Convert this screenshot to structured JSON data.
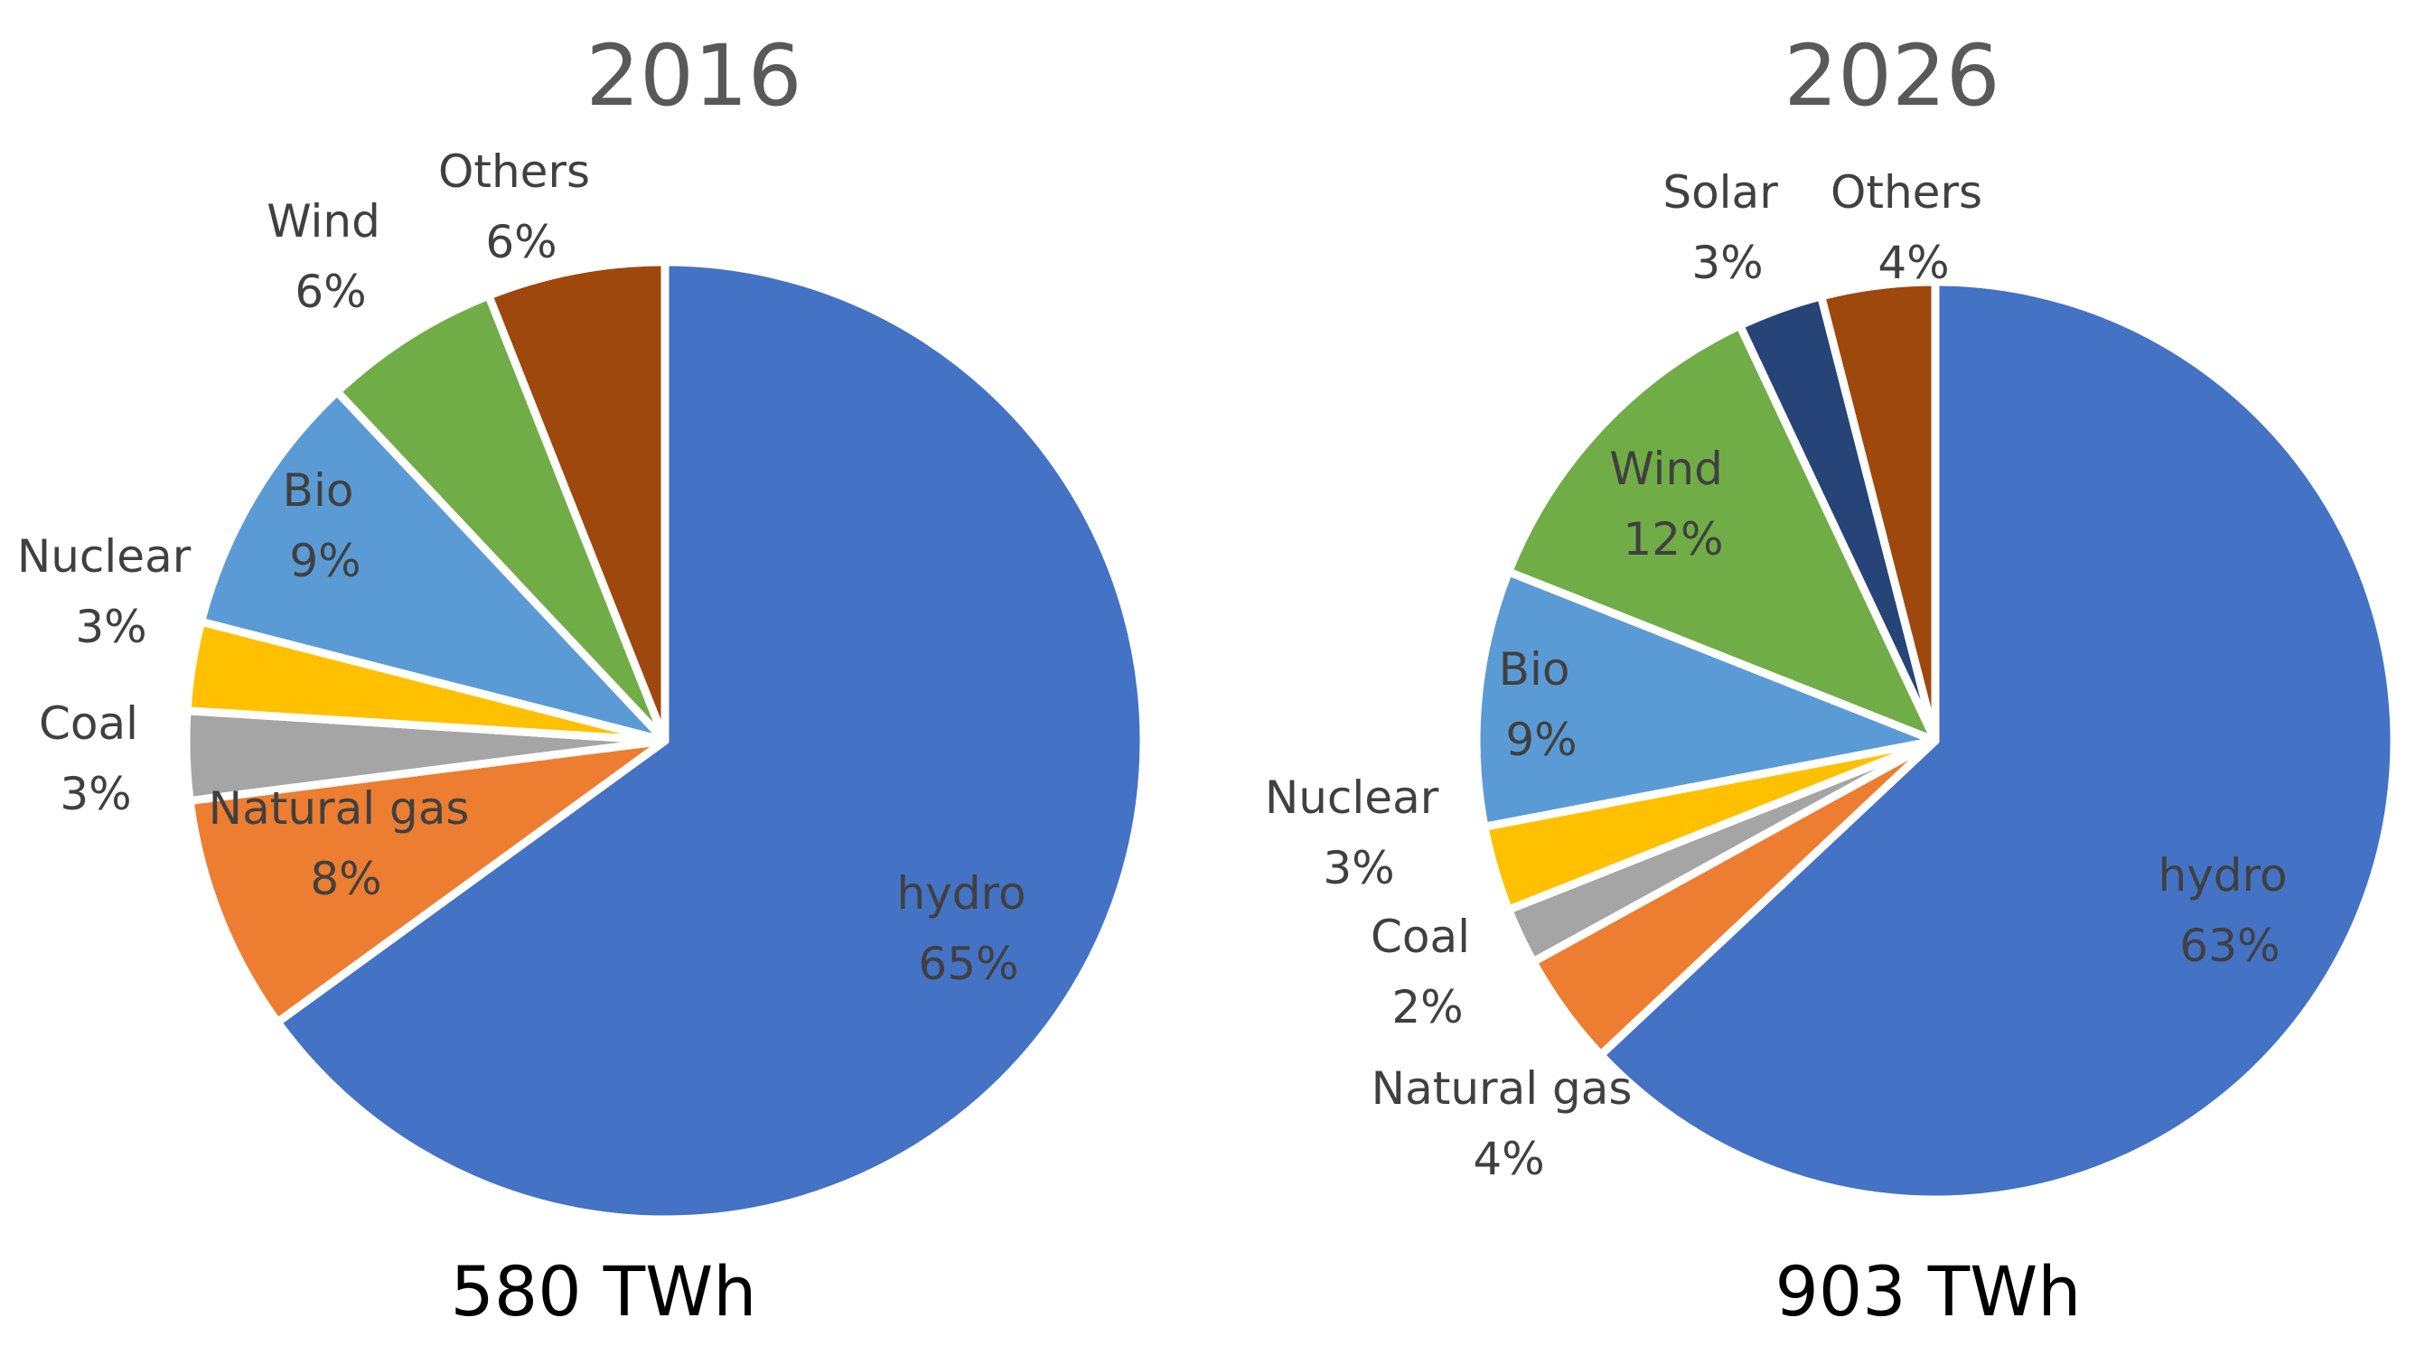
{
  "chart_data": [
    {
      "type": "pie",
      "title": "2016",
      "total_label": "580 TWh",
      "slices": [
        {
          "name": "hydro",
          "value": 65,
          "label": "65%",
          "color": "#4472C4"
        },
        {
          "name": "Natural gas",
          "value": 8,
          "label": "8%",
          "color": "#ED7D31"
        },
        {
          "name": "Coal",
          "value": 3,
          "label": "3%",
          "color": "#A5A5A5"
        },
        {
          "name": "Nuclear",
          "value": 3,
          "label": "3%",
          "color": "#FFC000"
        },
        {
          "name": "Bio",
          "value": 9,
          "label": "9%",
          "color": "#5B9BD5"
        },
        {
          "name": "Wind",
          "value": 6,
          "label": "6%",
          "color": "#70AD47"
        },
        {
          "name": "Others",
          "value": 6,
          "label": "6%",
          "color": "#9E480E"
        }
      ]
    },
    {
      "type": "pie",
      "title": "2026",
      "total_label": "903 TWh",
      "slices": [
        {
          "name": "hydro",
          "value": 63,
          "label": "63%",
          "color": "#4472C4"
        },
        {
          "name": "Natural gas",
          "value": 4,
          "label": "4%",
          "color": "#ED7D31"
        },
        {
          "name": "Coal",
          "value": 2,
          "label": "2%",
          "color": "#A5A5A5"
        },
        {
          "name": "Nuclear",
          "value": 3,
          "label": "3%",
          "color": "#FFC000"
        },
        {
          "name": "Bio",
          "value": 9,
          "label": "9%",
          "color": "#5B9BD5"
        },
        {
          "name": "Wind",
          "value": 12,
          "label": "12%",
          "color": "#70AD47"
        },
        {
          "name": "Solar",
          "value": 3,
          "label": "3%",
          "color": "#264478"
        },
        {
          "name": "Others",
          "value": 4,
          "label": "4%",
          "color": "#9E480E"
        }
      ]
    }
  ]
}
